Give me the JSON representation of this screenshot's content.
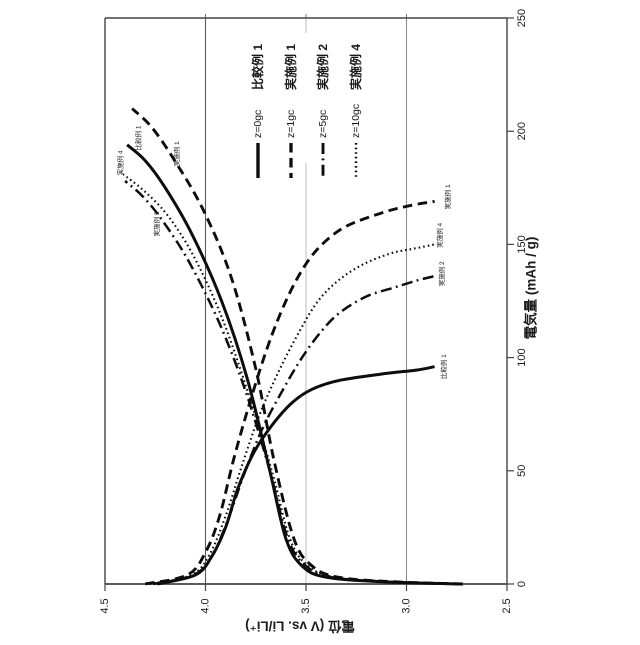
{
  "figure": {
    "background": "#ffffff",
    "ink_color": "#0d0d0d",
    "note": "patent-style charge/discharge curve figure rotated 90deg CCW"
  },
  "chart_data": {
    "type": "line",
    "rotation": "90deg CCW (capacity axis vertical right, voltage axis horizontal bottom)",
    "voltage_axis": {
      "label": "電位 (V vs. Li/Li⁺)",
      "min": 2.5,
      "max": 4.5,
      "ticks": [
        "4.5",
        "4.0",
        "3.5",
        "3.0",
        "2.5"
      ],
      "gridlines": [
        "4.0",
        "3.5",
        "3.0"
      ]
    },
    "capacity_axis": {
      "label": "電気量 (mAh / g)",
      "min": 0,
      "max": 250,
      "ticks": [
        "0",
        "50",
        "100",
        "150",
        "200",
        "250"
      ]
    },
    "series": [
      {
        "name": "比較例 1",
        "z_label": "z=0gc",
        "style": "solid",
        "charge": [
          [
            0,
            2.72
          ],
          [
            1,
            3.12
          ],
          [
            3,
            3.4
          ],
          [
            8,
            3.52
          ],
          [
            20,
            3.6
          ],
          [
            50,
            3.68
          ],
          [
            90,
            3.79
          ],
          [
            125,
            3.92
          ],
          [
            155,
            4.07
          ],
          [
            175,
            4.2
          ],
          [
            187,
            4.3
          ],
          [
            194,
            4.39
          ]
        ],
        "discharge": [
          [
            0,
            4.24
          ],
          [
            4,
            4.05
          ],
          [
            12,
            3.97
          ],
          [
            25,
            3.9
          ],
          [
            42,
            3.84
          ],
          [
            58,
            3.76
          ],
          [
            70,
            3.67
          ],
          [
            80,
            3.57
          ],
          [
            86,
            3.47
          ],
          [
            90,
            3.33
          ],
          [
            93,
            3.1
          ],
          [
            94.5,
            2.95
          ],
          [
            96,
            2.86
          ]
        ]
      },
      {
        "name": "実施例 1",
        "z_label": "z=1gc",
        "style": "dashed",
        "charge": [
          [
            0,
            2.72
          ],
          [
            1,
            3.07
          ],
          [
            3,
            3.34
          ],
          [
            8,
            3.47
          ],
          [
            20,
            3.56
          ],
          [
            55,
            3.66
          ],
          [
            95,
            3.75
          ],
          [
            135,
            3.87
          ],
          [
            165,
            4.01
          ],
          [
            188,
            4.16
          ],
          [
            202,
            4.27
          ],
          [
            210,
            4.365
          ]
        ],
        "discharge": [
          [
            0,
            4.3
          ],
          [
            4,
            4.09
          ],
          [
            14,
            4.0
          ],
          [
            30,
            3.93
          ],
          [
            55,
            3.86
          ],
          [
            80,
            3.78
          ],
          [
            105,
            3.69
          ],
          [
            125,
            3.6
          ],
          [
            140,
            3.51
          ],
          [
            150,
            3.42
          ],
          [
            158,
            3.3
          ],
          [
            164,
            3.12
          ],
          [
            167,
            2.99
          ],
          [
            169,
            2.86
          ]
        ]
      },
      {
        "name": "実施例 2",
        "z_label": "z=5gc",
        "style": "dash-dot",
        "charge": [
          [
            0,
            2.72
          ],
          [
            1,
            3.1
          ],
          [
            3,
            3.37
          ],
          [
            8,
            3.5
          ],
          [
            20,
            3.59
          ],
          [
            50,
            3.68
          ],
          [
            85,
            3.8
          ],
          [
            115,
            3.93
          ],
          [
            142,
            4.08
          ],
          [
            160,
            4.21
          ],
          [
            171,
            4.31
          ],
          [
            178,
            4.4
          ]
        ],
        "discharge": [
          [
            0,
            4.26
          ],
          [
            4,
            4.06
          ],
          [
            12,
            3.97
          ],
          [
            28,
            3.89
          ],
          [
            48,
            3.81
          ],
          [
            68,
            3.72
          ],
          [
            85,
            3.62
          ],
          [
            100,
            3.52
          ],
          [
            112,
            3.42
          ],
          [
            120,
            3.33
          ],
          [
            127,
            3.2
          ],
          [
            131,
            3.06
          ],
          [
            134,
            2.95
          ],
          [
            136,
            2.86
          ]
        ]
      },
      {
        "name": "実施例 4",
        "z_label": "z=10gc",
        "style": "dotted",
        "charge": [
          [
            0,
            2.72
          ],
          [
            1,
            3.09
          ],
          [
            3,
            3.36
          ],
          [
            8,
            3.49
          ],
          [
            20,
            3.58
          ],
          [
            50,
            3.67
          ],
          [
            85,
            3.79
          ],
          [
            118,
            3.92
          ],
          [
            145,
            4.06
          ],
          [
            163,
            4.19
          ],
          [
            174,
            4.31
          ],
          [
            181,
            4.41
          ]
        ],
        "discharge": [
          [
            0,
            4.28
          ],
          [
            4,
            4.07
          ],
          [
            13,
            3.98
          ],
          [
            30,
            3.9
          ],
          [
            52,
            3.82
          ],
          [
            75,
            3.73
          ],
          [
            95,
            3.63
          ],
          [
            112,
            3.53
          ],
          [
            125,
            3.44
          ],
          [
            134,
            3.34
          ],
          [
            141,
            3.22
          ],
          [
            146,
            3.08
          ],
          [
            148,
            2.97
          ],
          [
            150,
            2.86
          ]
        ]
      }
    ],
    "legend": {
      "items": [
        {
          "style": "solid",
          "z_label": "z=0gc",
          "name": "比較例 1"
        },
        {
          "style": "dashed",
          "z_label": "z=1gc",
          "name": "実施例 1"
        },
        {
          "style": "dash-dot",
          "z_label": "z=5gc",
          "name": "実施例 2"
        },
        {
          "style": "dotted",
          "z_label": "z=10gc",
          "name": "実施例 4"
        }
      ]
    },
    "curve_labels": [
      {
        "text": "比較例 1",
        "capacity": 197,
        "voltage": 4.33
      },
      {
        "text": "実施例 1",
        "capacity": 190,
        "voltage": 4.14
      },
      {
        "text": "実施例 4",
        "capacity": 186,
        "voltage": 4.42
      },
      {
        "text": "実施例 2",
        "capacity": 159,
        "voltage": 4.24
      },
      {
        "text": "実施例 1",
        "capacity": 171,
        "voltage": 2.79
      },
      {
        "text": "実施例 4",
        "capacity": 154,
        "voltage": 2.83
      },
      {
        "text": "実施例 2",
        "capacity": 137,
        "voltage": 2.82
      },
      {
        "text": "比較例 1",
        "capacity": 96,
        "voltage": 2.81
      }
    ]
  }
}
